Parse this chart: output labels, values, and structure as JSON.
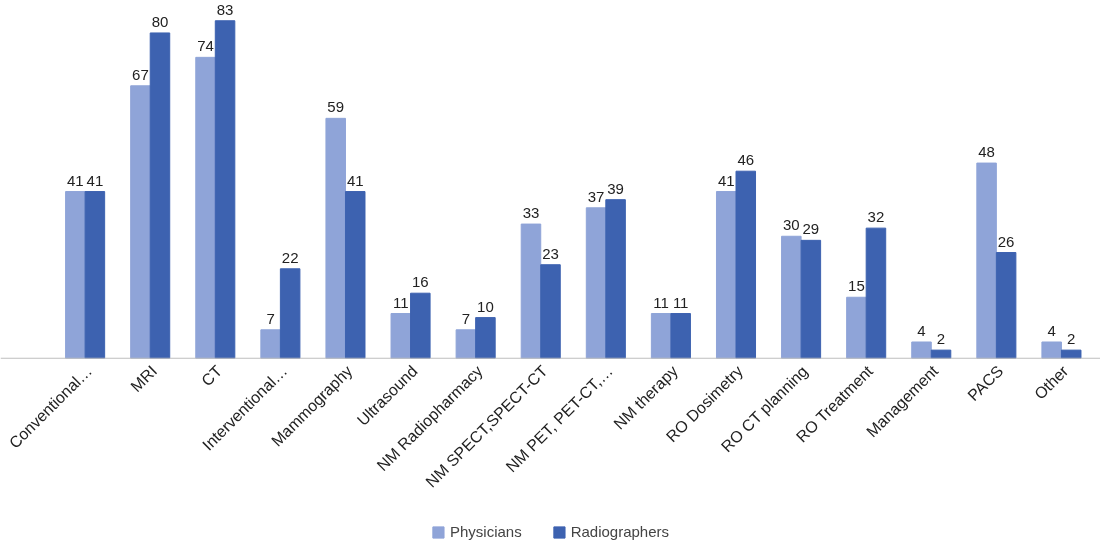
{
  "chart_data": {
    "type": "bar",
    "categories": [
      "Conventional…",
      "MRI",
      "CT",
      "Interventional…",
      "Mammography",
      "Ultrasound",
      "NM Radiopharmacy",
      "NM SPECT,SPECT-CT",
      "NM PET, PET-CT,…",
      "NM therapy",
      "RO Dosimetry",
      "RO CT planning",
      "RO Treatment",
      "Management",
      "PACS",
      "Other"
    ],
    "series": [
      {
        "name": "Physicians",
        "color": "#8fa4d8",
        "values": [
          41,
          67,
          74,
          7,
          59,
          11,
          7,
          33,
          37,
          11,
          41,
          30,
          15,
          4,
          48,
          4
        ]
      },
      {
        "name": "Radiographers",
        "color": "#3d62b0",
        "values": [
          41,
          80,
          83,
          22,
          41,
          16,
          10,
          23,
          39,
          11,
          46,
          29,
          32,
          2,
          26,
          2
        ]
      }
    ],
    "data_labels": true,
    "tick_labels": "x",
    "grid": false,
    "legend": "bottom"
  }
}
